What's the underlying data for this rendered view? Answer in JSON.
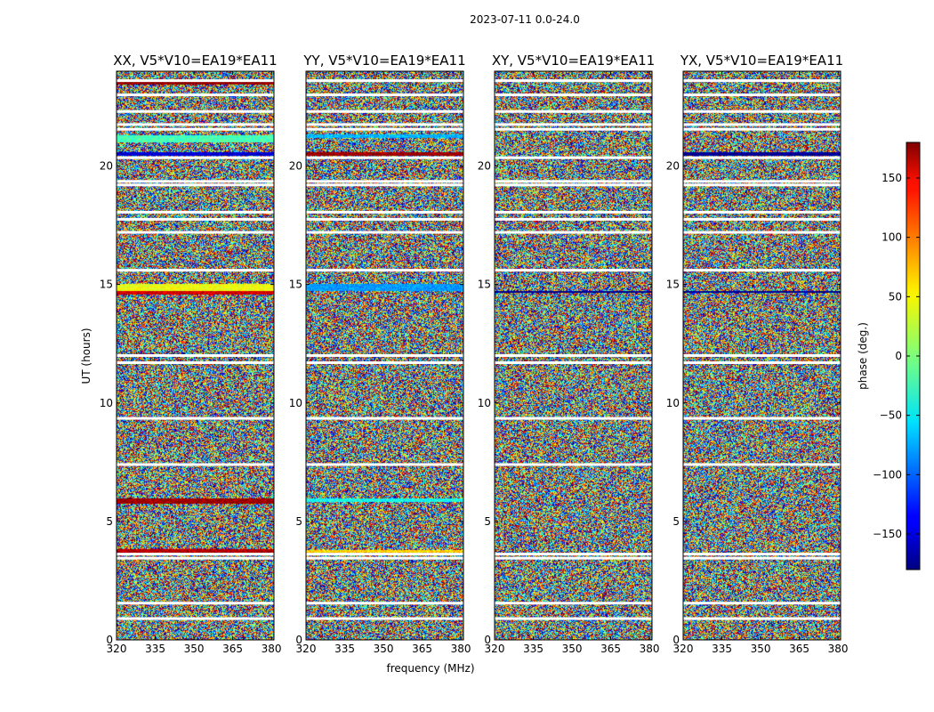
{
  "figure_title": "2023-07-11 0.0-24.0",
  "chart_data": {
    "type": "heatmap",
    "xlabel": "frequency (MHz)",
    "ylabel": "UT (hours)",
    "xlim": [
      320,
      381
    ],
    "ylim": [
      0,
      24
    ],
    "x_ticks": [
      320,
      335,
      350,
      365,
      380
    ],
    "y_ticks": [
      0,
      5,
      10,
      15,
      20
    ],
    "colorbar": {
      "label": "phase (deg.)",
      "range": [
        -180,
        180
      ],
      "ticks": [
        -150,
        -100,
        -50,
        0,
        50,
        100,
        150
      ],
      "tick_labels": [
        "−150",
        "−100",
        "−50",
        "0",
        "50",
        "100",
        "150"
      ],
      "colormap": "jet"
    },
    "panels": [
      {
        "title": "XX, V5*V10=EA19*EA11"
      },
      {
        "title": "YY, V5*V10=EA19*EA11"
      },
      {
        "title": "XY, V5*V10=EA19*EA11"
      },
      {
        "title": "YX, V5*V10=EA19*EA11"
      }
    ],
    "flagged_ut_hours": [
      0.9,
      1.55,
      3.45,
      3.62,
      7.4,
      9.35,
      11.7,
      12.0,
      15.6,
      17.2,
      17.75,
      18.05,
      19.2,
      19.35,
      20.35,
      21.55,
      21.75,
      22.3,
      23.0,
      23.6
    ],
    "coherent_bands": [
      {
        "panel": 0,
        "ut": [
          14.75,
          15.05
        ],
        "phase": 40
      },
      {
        "panel": 0,
        "ut": [
          14.6,
          14.75
        ],
        "phase": 150
      },
      {
        "panel": 0,
        "ut": [
          5.75,
          6.0
        ],
        "phase": 170
      },
      {
        "panel": 0,
        "ut": [
          3.7,
          3.85
        ],
        "phase": 160
      },
      {
        "panel": 0,
        "ut": [
          20.45,
          20.6
        ],
        "phase": -150
      },
      {
        "panel": 0,
        "ut": [
          21.0,
          21.3
        ],
        "phase": -20
      },
      {
        "panel": 0,
        "ut": [
          23.45,
          23.6
        ],
        "phase": 175
      },
      {
        "panel": 1,
        "ut": [
          14.75,
          15.05
        ],
        "phase": -80
      },
      {
        "panel": 1,
        "ut": [
          20.45,
          20.6
        ],
        "phase": 170
      },
      {
        "panel": 1,
        "ut": [
          21.2,
          21.35
        ],
        "phase": -70
      },
      {
        "panel": 1,
        "ut": [
          5.85,
          6.0
        ],
        "phase": -40
      },
      {
        "panel": 1,
        "ut": [
          3.7,
          3.8
        ],
        "phase": 60
      },
      {
        "panel": 2,
        "ut": [
          14.65,
          14.75
        ],
        "phase": -175
      },
      {
        "panel": 3,
        "ut": [
          14.65,
          14.75
        ],
        "phase": -175
      },
      {
        "panel": 3,
        "ut": [
          20.45,
          20.6
        ],
        "phase": -175
      }
    ]
  }
}
